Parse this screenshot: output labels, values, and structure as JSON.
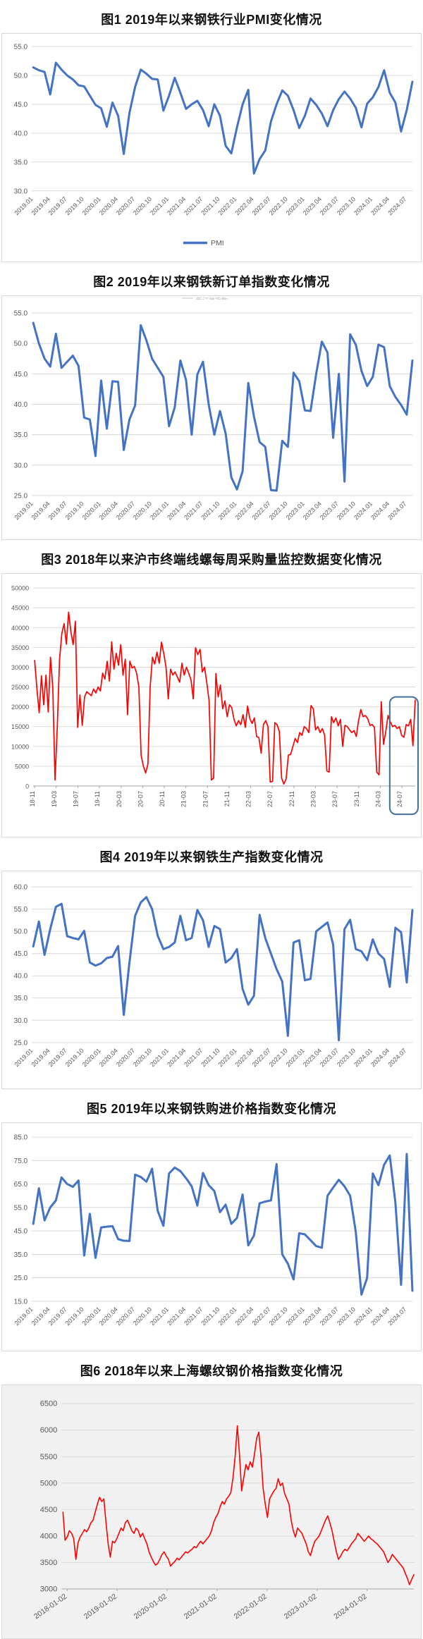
{
  "page": {
    "background": "#ffffff"
  },
  "colors": {
    "line_blue": "#4472C4",
    "line_red": "#FF0000",
    "grid": "#D9D9D9",
    "axis_text": "#595959",
    "highlight_border": "#41719C"
  },
  "charts": [
    {
      "title": "图1  2019年以来钢铁行业PMI变化情况",
      "chart_data": {
        "type": "line",
        "title": "图1  2019年以来钢铁行业PMI变化情况",
        "ylim": [
          30,
          55
        ],
        "ytick_step": 5,
        "y_decimals": 1,
        "grid": true,
        "legend": {
          "label": "PMI",
          "position": "bottom"
        },
        "x_labels": [
          "2019.01",
          "2019.04",
          "2019.07",
          "2019.10",
          "2020.01",
          "2020.04",
          "2020.07",
          "2020.10",
          "2021.01",
          "2021.04",
          "2021.07",
          "2021.10",
          "2022.01",
          "2022.04",
          "2022.07",
          "2022.10",
          "2023.01",
          "2023.04",
          "2023.07",
          "2023.10",
          "2024.01",
          "2024.04",
          "2024.07"
        ],
        "x_tick_every": 3,
        "series": [
          {
            "name": "PMI",
            "color": "#4472C4",
            "values": [
              51.4,
              50.9,
              50.6,
              46.7,
              52.2,
              51.0,
              50.0,
              49.3,
              48.3,
              48.1,
              46.5,
              44.9,
              44.3,
              41.1,
              45.3,
              43.0,
              36.4,
              43.5,
              48.0,
              51.0,
              50.3,
              49.4,
              49.3,
              43.9,
              46.5,
              49.6,
              47.0,
              44.2,
              45.0,
              45.6,
              44.0,
              41.2,
              45.0,
              43.0,
              37.8,
              36.5,
              41.0,
              45.0,
              47.5,
              33.0,
              35.5,
              37.0,
              42.0,
              45.0,
              47.4,
              46.5,
              44.0,
              40.9,
              43.0,
              46.0,
              44.9,
              43.4,
              41.2,
              44.0,
              45.9,
              47.2,
              46.0,
              44.4,
              41.0,
              45.1,
              46.2,
              48.0,
              50.9,
              47.0,
              45.3,
              40.3,
              44.0,
              48.9
            ]
          }
        ]
      }
    },
    {
      "title": "图2  2019年以来钢铁新订单指数变化情况",
      "chart_data": {
        "type": "line",
        "title": "图2  2019年以来钢铁新订单指数变化情况",
        "ylim": [
          25,
          55
        ],
        "ytick_step": 5,
        "y_decimals": 1,
        "grid": true,
        "clipped_legend": "新订单指数",
        "x_labels": [
          "2019.01",
          "2019.04",
          "2019.07",
          "2019.10",
          "2020.01",
          "2020.04",
          "2020.07",
          "2020.10",
          "2021.01",
          "2021.04",
          "2021.07",
          "2021.10",
          "2022.01",
          "2022.04",
          "2022.07",
          "2022.10",
          "2023.01",
          "2023.04",
          "2023.07",
          "2023.10",
          "2024.01",
          "2024.04",
          "2024.07"
        ],
        "x_tick_every": 3,
        "series": [
          {
            "name": "新订单指数",
            "color": "#4472C4",
            "values": [
              53.4,
              50.0,
              47.5,
              46.2,
              51.6,
              46.0,
              47.0,
              48.0,
              46.3,
              37.8,
              37.5,
              31.5,
              43.9,
              36.0,
              43.8,
              43.7,
              32.5,
              37.5,
              39.8,
              53.0,
              50.5,
              47.5,
              46.0,
              44.5,
              36.4,
              39.5,
              47.2,
              44.0,
              35.0,
              44.9,
              47.0,
              40.0,
              35.0,
              38.9,
              35.2,
              28.0,
              26.0,
              29.0,
              43.5,
              38.0,
              33.8,
              33.0,
              25.9,
              25.8,
              34.0,
              33.0,
              45.2,
              43.8,
              39.0,
              38.9,
              45.0,
              50.3,
              48.5,
              34.5,
              45.0,
              27.3,
              51.5,
              49.8,
              45.5,
              43.0,
              44.5,
              49.8,
              49.4,
              43.0,
              41.2,
              39.9,
              38.3,
              47.2
            ]
          }
        ]
      }
    },
    {
      "title": "图3  2018年以来沪市终端线螺每周采购量监控数据变化情况",
      "chart_data": {
        "type": "line",
        "title": "图3  2018年以来沪市终端线螺每周采购量监控数据变化情况",
        "ylim": [
          0,
          50000
        ],
        "ytick_step": 5000,
        "y_decimals": 0,
        "grid": true,
        "highlight_box": {
          "label_covered": "24-07",
          "border_color": "#41719C"
        },
        "x_labels": [
          "18-11",
          "19-03",
          "19-07",
          "19-11",
          "20-03",
          "20-07",
          "20-11",
          "21-03",
          "21-07",
          "21-11",
          "22-03",
          "22-07",
          "22-11",
          "23-03",
          "23-07",
          "23-11",
          "24-03",
          "24-07"
        ],
        "series": [
          {
            "name": "每周采购量",
            "color": "#FF0000",
            "values": [
              31700,
              24500,
              18500,
              27800,
              20500,
              28000,
              18700,
              32500,
              25000,
              1500,
              15000,
              32000,
              38500,
              41000,
              35800,
              43900,
              39000,
              35700,
              41600,
              14800,
              23000,
              15300,
              22500,
              23800,
              23300,
              22800,
              24500,
              23500,
              25000,
              24000,
              28500,
              27000,
              31500,
              26500,
              36400,
              29500,
              33500,
              30500,
              35700,
              28000,
              32000,
              18000,
              31500,
              29800,
              30200,
              28500,
              25000,
              7800,
              5000,
              3300,
              5500,
              25000,
              32500,
              30800,
              33800,
              31000,
              36300,
              33500,
              30000,
              22000,
              29500,
              28000,
              28800,
              27500,
              26200,
              31000,
              28000,
              30000,
              28500,
              26800,
              22000,
              34900,
              33200,
              34500,
              28800,
              30000,
              26000,
              21500,
              1500,
              2000,
              28400,
              22500,
              25500,
              19500,
              21500,
              17500,
              20500,
              19800,
              16800,
              15200,
              16500,
              15500,
              18000,
              14800,
              20200,
              17000,
              15800,
              17200,
              12500,
              12200,
              8300,
              15500,
              16500,
              15000,
              1000,
              1200,
              16000,
              15500,
              13800,
              2000,
              500,
              1800,
              7800,
              8000,
              10000,
              12000,
              11000,
              13500,
              12800,
              15000,
              14500,
              13500,
              20300,
              19500,
              14200,
              15000,
              13500,
              14500,
              12800,
              3800,
              3500,
              17500,
              16000,
              17200,
              15200,
              16800,
              10000,
              15300,
              15000,
              14200,
              13500,
              14000,
              12500,
              16500,
              19300,
              17500,
              17800,
              17000,
              15300,
              15500,
              14800,
              3500,
              2800,
              21300,
              10500,
              13800,
              17800,
              16200,
              15000,
              15300,
              14500,
              15000,
              12800,
              12300,
              15500,
              15200,
              16800,
              10200,
              21700
            ]
          }
        ]
      }
    },
    {
      "title": "图4  2019年以来钢铁生产指数变化情况",
      "chart_data": {
        "type": "line",
        "title": "图4  2019年以来钢铁生产指数变化情况",
        "ylim": [
          25,
          60
        ],
        "ytick_step": 5,
        "y_decimals": 1,
        "grid": true,
        "x_labels": [
          "2019.01",
          "2019.04",
          "2019.07",
          "2019.10",
          "2020.01",
          "2020.04",
          "2020.07",
          "2020.10",
          "2021.01",
          "2021.04",
          "2021.07",
          "2021.10",
          "2022.01",
          "2022.04",
          "2022.07",
          "2022.10",
          "2023.01",
          "2023.04",
          "2023.07",
          "2023.10",
          "2024.01",
          "2024.04",
          "2024.07"
        ],
        "x_tick_every": 3,
        "series": [
          {
            "name": "生产指数",
            "color": "#4472C4",
            "values": [
              46.6,
              52.2,
              44.7,
              50.5,
              55.5,
              56.2,
              48.9,
              48.5,
              48.2,
              50.1,
              43.0,
              42.3,
              42.8,
              44.0,
              44.3,
              46.7,
              31.2,
              43.0,
              53.5,
              56.5,
              57.7,
              55.0,
              49.0,
              46.0,
              46.5,
              47.5,
              53.5,
              48.0,
              48.5,
              54.8,
              52.5,
              46.5,
              51.2,
              50.5,
              43.0,
              44.0,
              46.0,
              37.0,
              33.5,
              35.5,
              53.7,
              48.5,
              45.0,
              41.5,
              38.7,
              26.5,
              47.5,
              48.0,
              39.0,
              39.3,
              50.0,
              51.0,
              52.0,
              47.0,
              25.5,
              50.5,
              52.6,
              46.0,
              45.5,
              43.5,
              48.2,
              45.0,
              43.8,
              37.5,
              50.8,
              49.8,
              38.5,
              54.8
            ]
          }
        ]
      }
    },
    {
      "title": "图5  2019年以来钢铁购进价格指数变化情况",
      "chart_data": {
        "type": "line",
        "title": "图5  2019年以来钢铁购进价格指数变化情况",
        "ylim": [
          15,
          85
        ],
        "ytick_step": 10,
        "y_decimals": 1,
        "grid": true,
        "x_labels": [
          "2019.01",
          "2019.04",
          "2019.07",
          "2019.10",
          "2020.01",
          "2020.04",
          "2020.07",
          "2020.10",
          "2021.01",
          "2021.04",
          "2021.07",
          "2021.10",
          "2022.01",
          "2022.04",
          "2022.07",
          "2022.10",
          "2023.01",
          "2023.04",
          "2023.07",
          "2023.10",
          "2024.01",
          "2024.04",
          "2024.07"
        ],
        "x_tick_every": 3,
        "series": [
          {
            "name": "购进价格指数",
            "color": "#4472C4",
            "values": [
              48.0,
              63.2,
              49.5,
              55.0,
              58.0,
              67.8,
              65.0,
              63.8,
              66.5,
              34.5,
              52.3,
              33.5,
              46.5,
              46.8,
              47.0,
              41.5,
              40.8,
              40.7,
              69.0,
              68.0,
              66.0,
              71.5,
              53.5,
              47.2,
              69.5,
              72.0,
              70.5,
              67.5,
              64.0,
              55.8,
              69.7,
              64.5,
              62.0,
              53.0,
              56.2,
              48.0,
              50.5,
              60.5,
              38.8,
              43.0,
              56.8,
              57.5,
              58.0,
              73.5,
              35.0,
              31.0,
              24.3,
              44.0,
              43.5,
              41.0,
              38.5,
              37.8,
              60.0,
              63.5,
              66.8,
              64.0,
              60.0,
              44.5,
              17.8,
              25.0,
              69.5,
              64.5,
              73.2,
              77.2,
              57.0,
              22.0,
              77.8,
              19.5
            ]
          }
        ]
      }
    },
    {
      "title": "图6  2018年以来上海螺纹钢价格指数变化情况",
      "chart_data": {
        "type": "line",
        "title": "图6  2018年以来上海螺纹钢价格指数变化情况",
        "ylim": [
          3000,
          6500
        ],
        "ytick_step": 500,
        "y_decimals": 0,
        "grid": true,
        "plot_background": "#f1f1f1",
        "x_labels": [
          "2018-01-02",
          "2019-01-02",
          "2020-01-02",
          "2021-01-02",
          "2022-01-02",
          "2023-01-02",
          "2024-01-02"
        ],
        "series": [
          {
            "name": "上海螺纹钢价格指数",
            "color": "#FF0000",
            "values": [
              4450,
              3920,
              3980,
              4100,
              4050,
              3950,
              3560,
              3870,
              3980,
              4050,
              4120,
              4080,
              4150,
              4250,
              4300,
              4450,
              4600,
              4730,
              4650,
              4700,
              4250,
              3850,
              3600,
              3900,
              3870,
              3950,
              4050,
              4150,
              4100,
              4250,
              4300,
              4200,
              4100,
              4050,
              4150,
              4100,
              3980,
              4050,
              3950,
              3850,
              3700,
              3600,
              3520,
              3450,
              3480,
              3560,
              3650,
              3700,
              3620,
              3560,
              3430,
              3480,
              3520,
              3580,
              3550,
              3600,
              3650,
              3700,
              3680,
              3720,
              3750,
              3800,
              3780,
              3850,
              3900,
              3850,
              3900,
              3950,
              4000,
              4100,
              4250,
              4350,
              4420,
              4550,
              4650,
              4600,
              4700,
              4750,
              4820,
              5100,
              5500,
              6080,
              5550,
              4850,
              5100,
              5350,
              5250,
              5400,
              5300,
              5550,
              5850,
              5960,
              5500,
              4900,
              4600,
              4350,
              4700,
              4780,
              4850,
              4900,
              5080,
              4950,
              5000,
              4800,
              4700,
              4600,
              4300,
              4100,
              3980,
              4150,
              4100,
              4050,
              3950,
              3850,
              3700,
              3630,
              3780,
              3900,
              3950,
              4000,
              4100,
              4200,
              4300,
              4380,
              4250,
              4100,
              3900,
              3700,
              3560,
              3620,
              3700,
              3750,
              3720,
              3780,
              3850,
              3900,
              3950,
              4050,
              4000,
              3950,
              3900,
              3950,
              4000,
              3950,
              3920,
              3880,
              3850,
              3800,
              3750,
              3700,
              3600,
              3500,
              3560,
              3650,
              3600,
              3550,
              3500,
              3450,
              3400,
              3300,
              3200,
              3080,
              3180,
              3270
            ]
          }
        ]
      }
    }
  ]
}
